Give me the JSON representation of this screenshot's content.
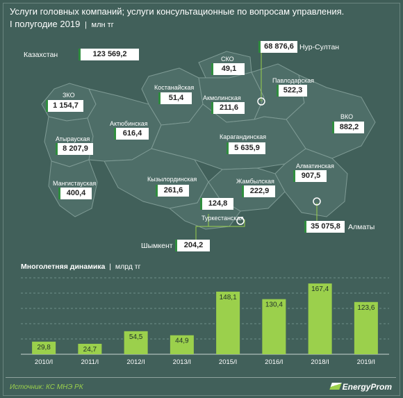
{
  "title": {
    "line1": "Услуги головных компаний;  услуги консультационные по вопросам управления.",
    "line2": "I полугодие 2019",
    "unit": "млн тг"
  },
  "regions": [
    {
      "key": "kz",
      "name": "Казахстан",
      "value": "123 569,2"
    },
    {
      "key": "nur",
      "name": "Нур-Султан",
      "value": "68 876,6"
    },
    {
      "key": "sko",
      "name": "СКО",
      "value": "49,1"
    },
    {
      "key": "pav",
      "name": "Павлодарская",
      "value": "522,3"
    },
    {
      "key": "kos",
      "name": "Костанайская",
      "value": "51,4"
    },
    {
      "key": "akm",
      "name": "Акмолинская",
      "value": "211,6"
    },
    {
      "key": "zko",
      "name": "ЗКО",
      "value": "1 154,7"
    },
    {
      "key": "akt",
      "name": "Актюбинская",
      "value": "616,4"
    },
    {
      "key": "vko",
      "name": "ВКО",
      "value": "882,2"
    },
    {
      "key": "kar",
      "name": "Карагандинская",
      "value": "5 635,9"
    },
    {
      "key": "aty",
      "name": "Атырауская",
      "value": "8 207,9"
    },
    {
      "key": "man",
      "name": "Мангистауская",
      "value": "400,4"
    },
    {
      "key": "kyz",
      "name": "Кызылординская",
      "value": "261,6"
    },
    {
      "key": "zham",
      "name": "Жамбылская",
      "value": "222,9"
    },
    {
      "key": "alm",
      "name": "Алматинская",
      "value": "907,5"
    },
    {
      "key": "tur",
      "name": "Туркестанская",
      "value": "124,8"
    },
    {
      "key": "almaty",
      "name": "Алматы",
      "value": "35 075,8"
    },
    {
      "key": "shym",
      "name": "Шымкент",
      "value": "204,2"
    }
  ],
  "chart_title": {
    "bold": "Многолетняя  динамика",
    "unit": "млрд тг"
  },
  "chart_data": {
    "type": "bar",
    "categories": [
      "2010/I",
      "2011/I",
      "2012/I",
      "2013/I",
      "2015/I",
      "2016/I",
      "2018/I",
      "2019/I"
    ],
    "values": [
      29.8,
      24.7,
      54.5,
      44.9,
      148.1,
      130.4,
      167.4,
      123.6
    ],
    "value_labels": [
      "29,8",
      "24,7",
      "54,5",
      "44,9",
      "148,1",
      "130,4",
      "167,4",
      "123,6"
    ],
    "grid": true,
    "colors": {
      "bar": "#9bd04c",
      "grid": "#7fa09a"
    }
  },
  "colors": {
    "background": "#41605a",
    "map_fill": "#4e6e68",
    "map_stroke": "#7f9b95",
    "accent": "#9bd04c",
    "box_border": "#2f8d3e"
  },
  "footer": {
    "source": "Источник: КС МНЭ РК",
    "logo": "EnergyProm"
  }
}
